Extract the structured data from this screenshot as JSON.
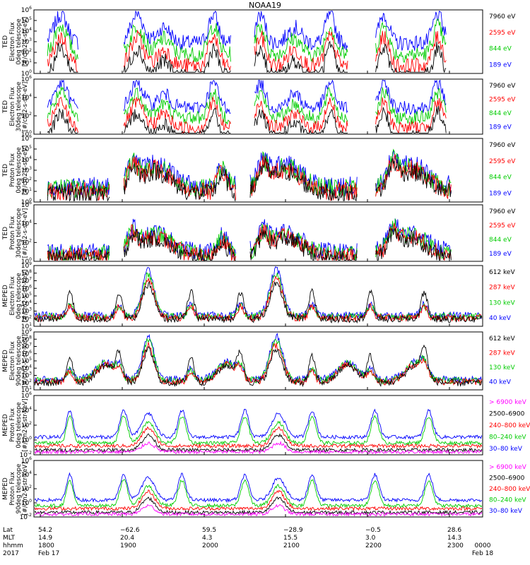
{
  "title": "NOAA19",
  "colors": {
    "black": "#000000",
    "red": "#ff0000",
    "green": "#00cc00",
    "blue": "#0000ff",
    "magenta": "#ff00ff"
  },
  "x_axis": {
    "row_labels": [
      "Lat",
      "MLT",
      "hhmm",
      "2017"
    ],
    "ticks": [
      {
        "lat": "54.2",
        "mlt": "14.9",
        "time": "1800",
        "date": "Feb 17"
      },
      {
        "lat": "−62.6",
        "mlt": "20.4",
        "time": "1900",
        "date": ""
      },
      {
        "lat": "59.5",
        "mlt": "4.3",
        "time": "2000",
        "date": ""
      },
      {
        "lat": "−28.9",
        "mlt": "15.5",
        "time": "2100",
        "date": ""
      },
      {
        "lat": "−0.5",
        "mlt": "3.0",
        "time": "2200",
        "date": ""
      },
      {
        "lat": "28.6",
        "mlt": "14.3",
        "time": "2300",
        "date": ""
      },
      {
        "lat": "",
        "mlt": "",
        "time": "0000",
        "date": "Feb 18"
      }
    ]
  },
  "chart_data": [
    {
      "type": "line",
      "title": "NOAA19",
      "instrument": "TED",
      "ylabel_lines": [
        "Electron Flux",
        "0deg telescope",
        "[#/cm2-s-str-eV]"
      ],
      "yscale": "log",
      "ylim_exp": [
        0,
        6
      ],
      "ytick_exps": [
        0,
        1,
        2,
        3,
        4,
        5,
        6
      ],
      "series": [
        {
          "name": "7960 eV",
          "color": "#000000"
        },
        {
          "name": "2595 eV",
          "color": "#ff0000"
        },
        {
          "name": "844 eV",
          "color": "#00cc00"
        },
        {
          "name": "189 eV",
          "color": "#0000ff"
        }
      ]
    },
    {
      "type": "line",
      "instrument": "TED",
      "ylabel_lines": [
        "Electron Flux",
        "30deg telescope",
        "[#/cm2-s-str-eV]"
      ],
      "yscale": "log",
      "ylim_exp": [
        0,
        6
      ],
      "ytick_exps": [
        0,
        2,
        4,
        6
      ],
      "series": [
        {
          "name": "7960 eV",
          "color": "#000000"
        },
        {
          "name": "2595 eV",
          "color": "#ff0000"
        },
        {
          "name": "844 eV",
          "color": "#00cc00"
        },
        {
          "name": "189 eV",
          "color": "#0000ff"
        }
      ]
    },
    {
      "type": "line",
      "instrument": "TED",
      "ylabel_lines": [
        "Proton Flux",
        "0deg telescope",
        "[#/cm2-s-str-eV]"
      ],
      "yscale": "log",
      "ylim_exp": [
        0,
        6
      ],
      "ytick_exps": [
        0,
        1,
        2,
        3,
        4,
        5,
        6
      ],
      "series": [
        {
          "name": "7960 eV",
          "color": "#000000"
        },
        {
          "name": "2595 eV",
          "color": "#ff0000"
        },
        {
          "name": "844 eV",
          "color": "#00cc00"
        },
        {
          "name": "189 eV",
          "color": "#0000ff"
        }
      ]
    },
    {
      "type": "line",
      "instrument": "TED",
      "ylabel_lines": [
        "Proton Flux",
        "30deg telescope",
        "[#/cm2-s-str-eV]"
      ],
      "yscale": "log",
      "ylim_exp": [
        0,
        6
      ],
      "ytick_exps": [
        0,
        2,
        4,
        6
      ],
      "series": [
        {
          "name": "7960 eV",
          "color": "#000000"
        },
        {
          "name": "2595 eV",
          "color": "#ff0000"
        },
        {
          "name": "844 eV",
          "color": "#00cc00"
        },
        {
          "name": "189 eV",
          "color": "#0000ff"
        }
      ]
    },
    {
      "type": "line",
      "instrument": "MEPED",
      "ylabel_lines": [
        "Electron Flux",
        "0deg telescope",
        "[#/cm2-s-str-keV]"
      ],
      "yscale": "log",
      "ylim_exp": [
        1,
        9
      ],
      "ytick_exps": [
        1,
        2,
        3,
        4,
        5,
        6,
        7,
        8,
        9
      ],
      "series": [
        {
          "name": "612 keV",
          "color": "#000000"
        },
        {
          "name": "287 keV",
          "color": "#ff0000"
        },
        {
          "name": "130 keV",
          "color": "#00cc00"
        },
        {
          "name": "40 keV",
          "color": "#0000ff"
        }
      ]
    },
    {
      "type": "line",
      "instrument": "MEPED",
      "ylabel_lines": [
        "Electron Flux",
        "90deg telescope",
        "[#/cm2-s-str-keV]"
      ],
      "yscale": "log",
      "ylim_exp": [
        1,
        9
      ],
      "ytick_exps": [
        1,
        2,
        3,
        4,
        5,
        6,
        7,
        8,
        9
      ],
      "series": [
        {
          "name": "612 keV",
          "color": "#000000"
        },
        {
          "name": "287 keV",
          "color": "#ff0000"
        },
        {
          "name": "130 keV",
          "color": "#00cc00"
        },
        {
          "name": "40 keV",
          "color": "#0000ff"
        }
      ]
    },
    {
      "type": "line",
      "instrument": "MEPED",
      "ylabel_lines": [
        "Proton Flux",
        "0deg telescope",
        "[#/cm2-s-str-keV]"
      ],
      "yscale": "log",
      "ylim_exp": [
        -2,
        6
      ],
      "ytick_exps": [
        -2,
        0,
        2,
        4,
        6
      ],
      "series": [
        {
          "name": "> 6900 keV",
          "color": "#ff00ff"
        },
        {
          "name": "2500–6900",
          "color": "#000000"
        },
        {
          "name": "240–800 keV",
          "color": "#ff0000"
        },
        {
          "name": "80–240 keV",
          "color": "#00cc00"
        },
        {
          "name": "30–80 keV",
          "color": "#0000ff"
        }
      ]
    },
    {
      "type": "line",
      "instrument": "MEPED",
      "ylabel_lines": [
        "Proton Flux",
        "90deg telescope",
        "[#/cm2-s-str-keV]"
      ],
      "yscale": "log",
      "ylim_exp": [
        -2,
        6
      ],
      "ytick_exps": [
        -2,
        0,
        2,
        4,
        6
      ],
      "series": [
        {
          "name": "> 6900 keV",
          "color": "#ff00ff"
        },
        {
          "name": "2500–6900",
          "color": "#000000"
        },
        {
          "name": "240–800 keV",
          "color": "#ff0000"
        },
        {
          "name": "80–240 keV",
          "color": "#00cc00"
        },
        {
          "name": "30–80 keV",
          "color": "#0000ff"
        }
      ]
    }
  ]
}
